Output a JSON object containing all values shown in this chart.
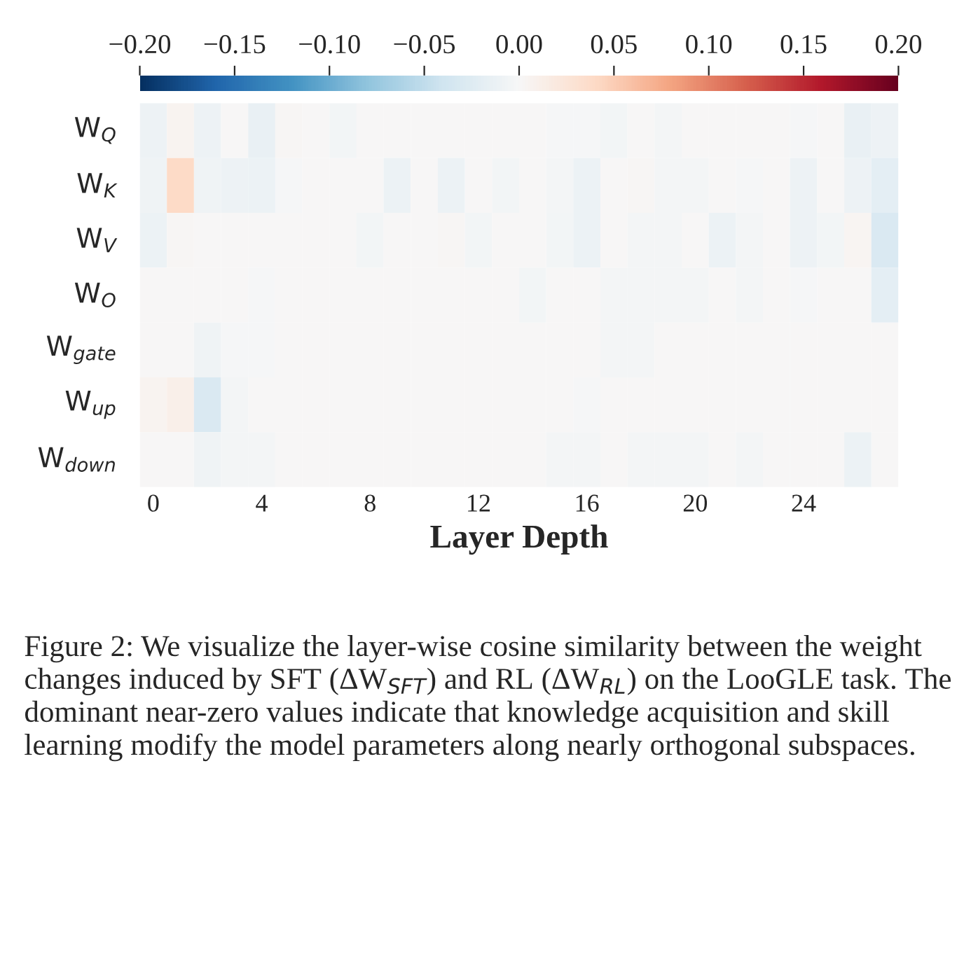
{
  "chart_data": {
    "type": "heatmap",
    "xlabel": "Layer Depth",
    "categories": [
      "0",
      null,
      null,
      null,
      "4",
      null,
      null,
      null,
      "8",
      null,
      null,
      null,
      "12",
      null,
      null,
      null,
      "16",
      null,
      null,
      null,
      "20",
      null,
      null,
      null,
      "24",
      null,
      null,
      null
    ],
    "y_categories": [
      "W$_{Q}$",
      "W$_{K}$",
      "W$_{V}$",
      "W$_{O}$",
      "W$_{gate}$",
      "W$_{up}$",
      "W$_{down}$"
    ],
    "cells": [
      [
        -0.01,
        0.005,
        -0.01,
        0.0,
        -0.015,
        0.003,
        0.0,
        -0.005,
        0.0,
        0.0,
        0.0,
        0.0,
        0.0,
        0.0,
        0.0,
        -0.003,
        -0.003,
        -0.005,
        0.0,
        -0.004,
        0.0,
        0.0,
        0.0,
        0.0,
        -0.003,
        0.0,
        -0.015,
        -0.01
      ],
      [
        -0.008,
        0.04,
        -0.008,
        -0.01,
        -0.012,
        -0.003,
        0.0,
        0.0,
        0.0,
        -0.012,
        0.0,
        -0.012,
        0.0,
        -0.005,
        0.0,
        -0.004,
        -0.012,
        0.0,
        0.003,
        -0.004,
        -0.004,
        0.0,
        -0.003,
        0.0,
        -0.01,
        0.0,
        -0.01,
        -0.02
      ],
      [
        -0.012,
        0.003,
        0.0,
        0.0,
        0.0,
        0.0,
        0.0,
        0.0,
        -0.005,
        0.0,
        0.0,
        0.003,
        -0.006,
        0.0,
        0.0,
        -0.006,
        -0.012,
        0.0,
        -0.004,
        -0.004,
        0.0,
        -0.012,
        -0.004,
        0.0,
        -0.01,
        -0.005,
        0.004,
        -0.03
      ],
      [
        0.0,
        0.0,
        0.0,
        0.0,
        -0.002,
        0.0,
        0.0,
        0.0,
        0.0,
        0.0,
        0.0,
        0.0,
        0.0,
        0.0,
        -0.005,
        0.0,
        0.0,
        -0.004,
        -0.004,
        -0.004,
        -0.004,
        0.0,
        -0.004,
        0.0,
        -0.003,
        0.0,
        0.0,
        -0.02
      ],
      [
        0.0,
        0.0,
        -0.008,
        -0.003,
        -0.003,
        0.0,
        0.0,
        0.0,
        0.0,
        0.0,
        0.0,
        0.0,
        0.0,
        0.0,
        0.0,
        0.0,
        0.0,
        -0.004,
        -0.004,
        0.0,
        0.0,
        0.0,
        0.0,
        0.0,
        0.0,
        0.0,
        0.0,
        0.0
      ],
      [
        0.005,
        0.012,
        -0.03,
        -0.004,
        0.0,
        0.0,
        0.0,
        0.0,
        0.0,
        0.0,
        0.0,
        0.0,
        0.0,
        0.0,
        0.0,
        0.0,
        -0.003,
        0.0,
        0.0,
        0.0,
        0.0,
        0.0,
        0.0,
        0.0,
        0.0,
        0.0,
        0.0,
        0.0
      ],
      [
        0.0,
        0.0,
        -0.008,
        -0.004,
        -0.004,
        0.0,
        0.0,
        0.0,
        0.0,
        0.0,
        0.0,
        0.0,
        0.0,
        0.0,
        0.0,
        -0.004,
        -0.004,
        0.0,
        -0.004,
        -0.004,
        -0.004,
        0.0,
        -0.004,
        0.0,
        0.0,
        0.0,
        -0.012,
        0.0
      ]
    ],
    "clim": [
      -0.2,
      0.2
    ],
    "cticks": [
      {
        "value": -0.2,
        "label": "−0.20"
      },
      {
        "value": -0.15,
        "label": "−0.15"
      },
      {
        "value": -0.1,
        "label": "−0.10"
      },
      {
        "value": -0.05,
        "label": "−0.05"
      },
      {
        "value": 0.0,
        "label": "0.00"
      },
      {
        "value": 0.05,
        "label": "0.05"
      },
      {
        "value": 0.1,
        "label": "0.10"
      },
      {
        "value": 0.15,
        "label": "0.15"
      },
      {
        "value": 0.2,
        "label": "0.20"
      }
    ],
    "grid": false,
    "annotations": [
      "Figure 2: We visualize the layer-wise cosine similarity between the weight changes induced by SFT (ΔW$_{SFT}$) and RL (ΔW$_{RL}$) on the LooGLE task. The dominant near-zero values indicate that knowledge acquisition and skill learning modify the model parameters along nearly orthogonal subspaces."
    ]
  }
}
